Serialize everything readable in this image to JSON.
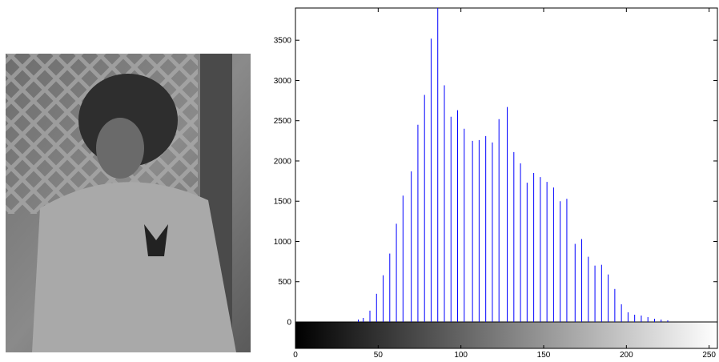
{
  "chart_data": {
    "type": "stem",
    "x": [
      38,
      41,
      45,
      49,
      53,
      57,
      61,
      65,
      70,
      74,
      78,
      82,
      86,
      90,
      94,
      98,
      102,
      107,
      111,
      115,
      119,
      123,
      128,
      132,
      136,
      140,
      144,
      148,
      152,
      156,
      160,
      164,
      169,
      173,
      177,
      181,
      185,
      189,
      193,
      197,
      201,
      205,
      209,
      213,
      217,
      221,
      225
    ],
    "series": [
      {
        "color": "#0000ff",
        "values": [
          30,
          50,
          140,
          350,
          580,
          850,
          1220,
          1570,
          1870,
          2450,
          2820,
          3520,
          3900,
          2940,
          2550,
          2630,
          2400,
          2250,
          2260,
          2310,
          2230,
          2520,
          2670,
          2110,
          1970,
          1730,
          1850,
          1800,
          1740,
          1670,
          1500,
          1530,
          970,
          1030,
          810,
          700,
          710,
          590,
          410,
          220,
          120,
          90,
          80,
          60,
          40,
          30,
          20
        ]
      }
    ],
    "xlim": [
      0,
      255
    ],
    "ylim": [
      0,
      3900
    ],
    "xticks": [
      0,
      50,
      100,
      150,
      200,
      250
    ],
    "yticks": [
      0,
      500,
      1000,
      1500,
      2000,
      2500,
      3000,
      3500
    ]
  }
}
